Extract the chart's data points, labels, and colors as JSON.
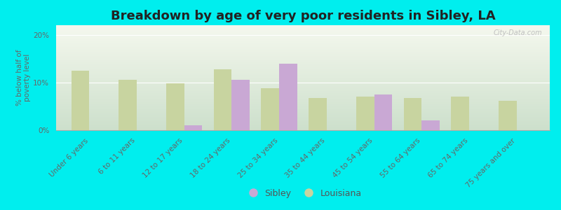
{
  "title": "Breakdown by age of very poor residents in Sibley, LA",
  "ylabel": "% below half of\npoverty level",
  "categories": [
    "Under 6 years",
    "6 to 11 years",
    "12 to 17 years",
    "18 to 24 years",
    "25 to 34 years",
    "35 to 44 years",
    "45 to 54 years",
    "55 to 64 years",
    "65 to 74 years",
    "75 years and over"
  ],
  "sibley_values": [
    0,
    0,
    1.0,
    10.5,
    14.0,
    0,
    7.5,
    2.0,
    0,
    0
  ],
  "louisiana_values": [
    12.5,
    10.5,
    9.8,
    12.8,
    8.8,
    6.8,
    7.0,
    6.8,
    7.0,
    6.2
  ],
  "sibley_color": "#c9a8d4",
  "louisiana_color": "#c8d4a0",
  "background_outer": "#00eeee",
  "background_plot_top": "#f0f5e8",
  "background_plot_bottom": "#d8ead8",
  "title_fontsize": 13,
  "ylabel_fontsize": 7.5,
  "tick_fontsize": 7.5,
  "ylim": [
    0,
    22
  ],
  "yticks": [
    0,
    10,
    20
  ],
  "ytick_labels": [
    "0%",
    "10%",
    "20%"
  ],
  "bar_width": 0.38,
  "watermark": "City-Data.com"
}
